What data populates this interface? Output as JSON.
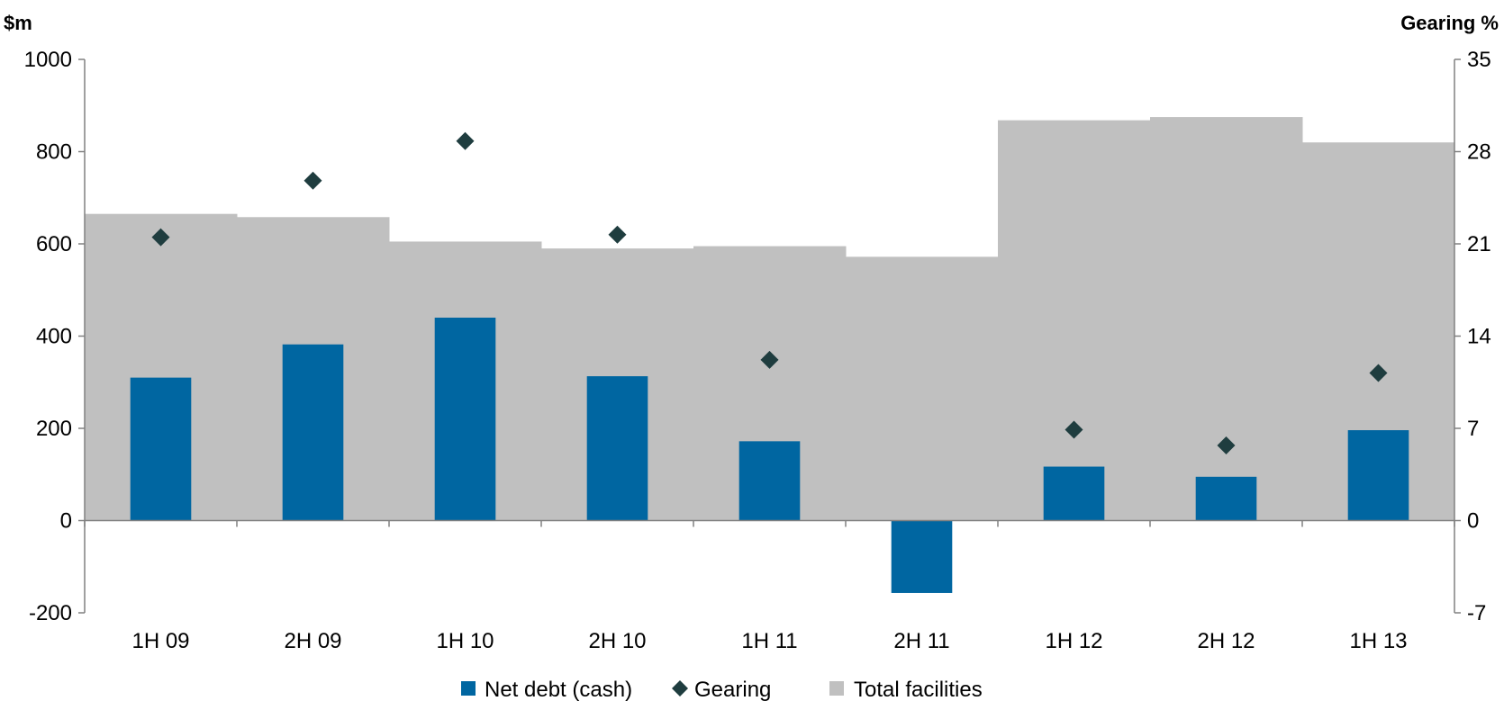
{
  "chart_data": {
    "type": "bar",
    "categories": [
      "1H 09",
      "2H 09",
      "1H 10",
      "2H 10",
      "1H 11",
      "2H 11",
      "1H 12",
      "2H 12",
      "1H 13"
    ],
    "series": [
      {
        "name": "Net debt (cash)",
        "type": "bar",
        "axis": "left",
        "color": "#0066A1",
        "values": [
          310,
          382,
          440,
          313,
          172,
          -157,
          117,
          95,
          196
        ]
      },
      {
        "name": "Gearing",
        "type": "scatter",
        "axis": "right",
        "marker": "diamond",
        "color": "#1F3D3F",
        "values": [
          21.5,
          25.8,
          28.8,
          21.7,
          12.2,
          null,
          6.9,
          5.7,
          11.2
        ]
      },
      {
        "name": "Total facilities",
        "type": "area",
        "axis": "left",
        "color": "#C0C0C0",
        "values": [
          665,
          658,
          605,
          590,
          595,
          572,
          868,
          875,
          820
        ]
      }
    ],
    "ylabel": "$m",
    "ylabel_right": "Gearing %",
    "ylim": [
      -200,
      1000
    ],
    "yticks": [
      1000,
      800,
      600,
      400,
      200,
      0,
      -200
    ],
    "ylim_right": [
      -7,
      35
    ],
    "yticks_right": [
      35,
      28,
      21,
      14,
      7,
      0,
      -7
    ],
    "grid": false,
    "legend_position": "bottom"
  },
  "legend": {
    "items": [
      {
        "label": "Net debt (cash)",
        "symbol": "square",
        "color": "#0066A1"
      },
      {
        "label": "Gearing",
        "symbol": "diamond",
        "color": "#1F3D3F"
      },
      {
        "label": "Total facilities",
        "symbol": "square",
        "color": "#C0C0C0"
      }
    ]
  }
}
